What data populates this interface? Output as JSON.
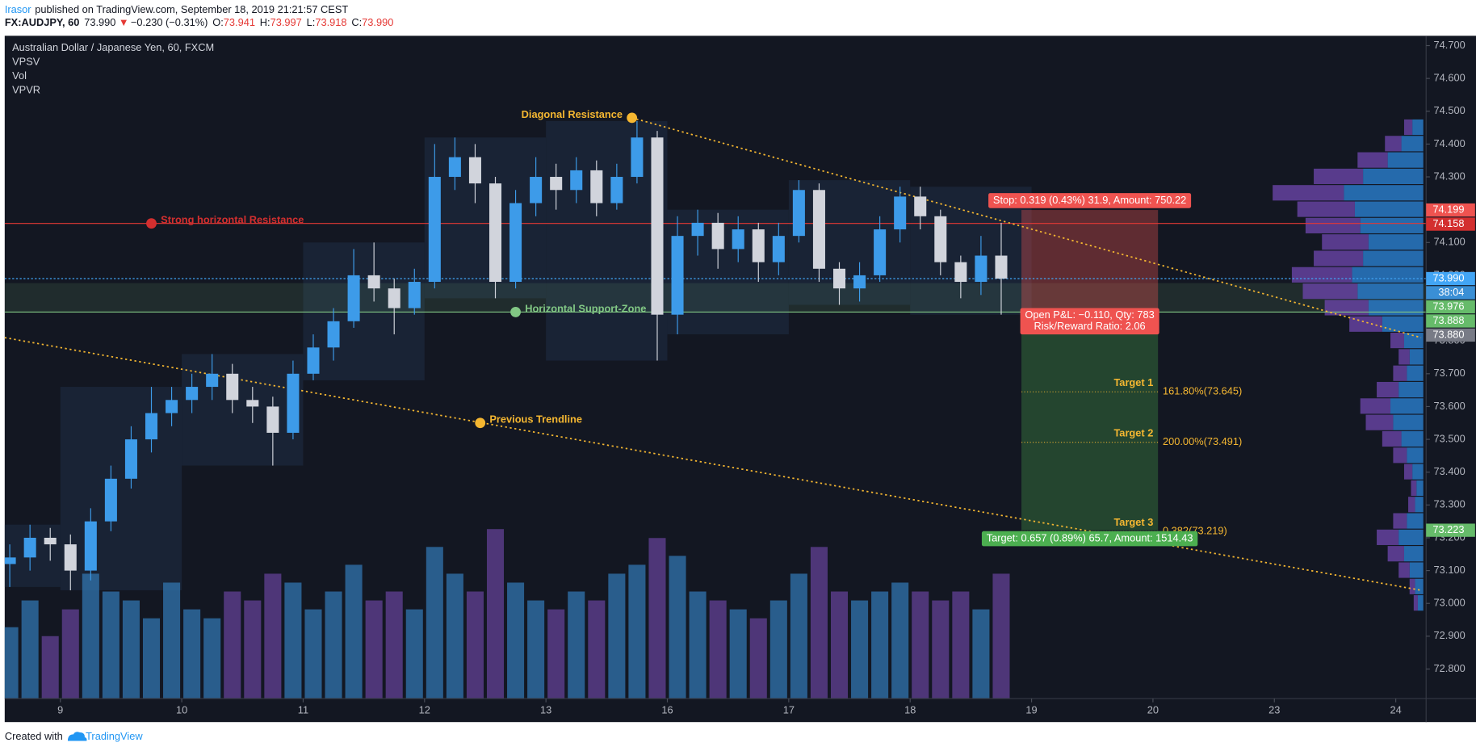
{
  "header": {
    "author": "Irasor",
    "published": "published on TradingView.com, September 18, 2019 21:21:57 CEST",
    "symbol": "FX:AUDJPY, 60",
    "last": "73.990",
    "arrow": "▼",
    "change": "−0.230 (−0.31%)",
    "ohlc": [
      {
        "key": "O:",
        "value": "73.941"
      },
      {
        "key": "H:",
        "value": "73.997"
      },
      {
        "key": "L:",
        "value": "73.918"
      },
      {
        "key": "C:",
        "value": "73.990"
      }
    ]
  },
  "footer": {
    "created": "Created with",
    "brand": "TradingView"
  },
  "chart_data": {
    "type": "candlestick",
    "title": "Australian Dollar / Japanese Yen, 60, FXCM",
    "indicators": [
      "VPSV",
      "Vol",
      "VPVR"
    ],
    "x": [
      0,
      4,
      8,
      12,
      16,
      20,
      24,
      28,
      32,
      36,
      40,
      44,
      48,
      52,
      56,
      60,
      64,
      68,
      72,
      76,
      80,
      84,
      88,
      92,
      96,
      100,
      104,
      108,
      112,
      116,
      120,
      124,
      128,
      132,
      136,
      140,
      144,
      148,
      152,
      156,
      160,
      164,
      168,
      172,
      176,
      180,
      184,
      188,
      192,
      196
    ],
    "open": [
      73.12,
      73.14,
      73.2,
      73.18,
      73.1,
      73.25,
      73.38,
      73.5,
      73.58,
      73.62,
      73.66,
      73.7,
      73.62,
      73.6,
      73.52,
      73.7,
      73.78,
      73.86,
      74.0,
      73.96,
      73.9,
      73.98,
      74.3,
      74.36,
      74.28,
      73.98,
      74.22,
      74.3,
      74.26,
      74.32,
      74.22,
      74.3,
      74.42,
      73.88,
      74.12,
      74.16,
      74.08,
      74.14,
      74.04,
      74.12,
      74.26,
      74.02,
      73.96,
      74.0,
      74.14,
      74.24,
      74.18,
      74.04,
      73.98,
      74.06
    ],
    "high": [
      73.18,
      73.24,
      73.23,
      73.21,
      73.29,
      73.42,
      73.54,
      73.66,
      73.66,
      73.7,
      73.76,
      73.73,
      73.66,
      73.63,
      73.74,
      73.82,
      73.9,
      74.08,
      74.1,
      73.99,
      74.02,
      74.4,
      74.42,
      74.4,
      74.3,
      74.26,
      74.36,
      74.34,
      74.36,
      74.35,
      74.34,
      74.47,
      74.44,
      74.18,
      74.2,
      74.19,
      74.18,
      74.16,
      74.16,
      74.29,
      74.28,
      74.04,
      74.04,
      74.18,
      74.27,
      74.27,
      74.2,
      74.06,
      74.12,
      74.16
    ],
    "low": [
      73.05,
      73.1,
      73.13,
      73.04,
      73.07,
      73.22,
      73.35,
      73.46,
      73.54,
      73.58,
      73.62,
      73.58,
      73.55,
      73.42,
      73.5,
      73.68,
      73.74,
      73.84,
      73.92,
      73.82,
      73.88,
      73.96,
      74.26,
      74.22,
      73.93,
      73.96,
      74.18,
      74.2,
      74.22,
      74.18,
      74.2,
      74.28,
      73.74,
      73.82,
      74.06,
      74.02,
      74.04,
      73.98,
      74.0,
      74.1,
      73.98,
      73.91,
      73.92,
      73.98,
      74.1,
      74.14,
      74.0,
      73.93,
      73.94,
      73.88
    ],
    "close": [
      73.14,
      73.2,
      73.18,
      73.1,
      73.25,
      73.38,
      73.5,
      73.58,
      73.62,
      73.66,
      73.7,
      73.62,
      73.6,
      73.52,
      73.7,
      73.78,
      73.86,
      74.0,
      73.96,
      73.9,
      73.98,
      74.3,
      74.36,
      74.28,
      73.98,
      74.22,
      74.3,
      74.26,
      74.32,
      74.22,
      74.3,
      74.42,
      73.88,
      74.12,
      74.16,
      74.08,
      74.14,
      74.04,
      74.12,
      74.26,
      74.02,
      73.96,
      74.0,
      74.14,
      74.24,
      74.18,
      74.04,
      73.98,
      74.06,
      73.99
    ],
    "volume": [
      40,
      55,
      35,
      50,
      70,
      60,
      55,
      45,
      65,
      50,
      45,
      60,
      55,
      70,
      65,
      50,
      60,
      75,
      55,
      60,
      50,
      85,
      70,
      60,
      95,
      65,
      55,
      50,
      60,
      55,
      70,
      75,
      90,
      80,
      60,
      55,
      50,
      45,
      55,
      70,
      85,
      60,
      55,
      60,
      65,
      60,
      55,
      60,
      50,
      70
    ],
    "up_color": "#3d9be9",
    "down_color": "#d1d4dc",
    "volume_up_color": "#2f6fa8",
    "volume_down_color": "#5e3f8f",
    "session_color": "#1b2638",
    "vpvr": {
      "prices": [
        73.0,
        73.05,
        73.1,
        73.15,
        73.2,
        73.25,
        73.3,
        73.35,
        73.4,
        73.45,
        73.5,
        73.55,
        73.6,
        73.65,
        73.7,
        73.75,
        73.8,
        73.85,
        73.9,
        73.95,
        74.0,
        74.05,
        74.1,
        74.15,
        74.2,
        74.25,
        74.3,
        74.35,
        74.4,
        74.45
      ],
      "up": [
        4,
        6,
        10,
        14,
        18,
        12,
        6,
        5,
        8,
        12,
        16,
        22,
        24,
        18,
        12,
        10,
        14,
        30,
        40,
        48,
        52,
        44,
        40,
        46,
        50,
        58,
        44,
        26,
        16,
        8
      ],
      "down": [
        3,
        4,
        8,
        12,
        16,
        10,
        5,
        4,
        6,
        10,
        14,
        20,
        22,
        16,
        10,
        8,
        10,
        24,
        32,
        40,
        44,
        36,
        34,
        40,
        42,
        52,
        36,
        22,
        12,
        6
      ],
      "up_color": "#2a7fd0",
      "down_color": "#6a45a8"
    },
    "xlim": [
      -1,
      280
    ],
    "xticks": [
      {
        "value": 10,
        "label": "9"
      },
      {
        "value": 34,
        "label": "10"
      },
      {
        "value": 58,
        "label": "11"
      },
      {
        "value": 82,
        "label": "12"
      },
      {
        "value": 106,
        "label": "13"
      },
      {
        "value": 130,
        "label": "16"
      },
      {
        "value": 154,
        "label": "17"
      },
      {
        "value": 178,
        "label": "18"
      },
      {
        "value": 202,
        "label": "19"
      },
      {
        "value": 226,
        "label": "20"
      },
      {
        "value": 250,
        "label": "23"
      },
      {
        "value": 274,
        "label": "24"
      }
    ],
    "ylim": [
      72.71,
      74.73
    ],
    "yticks": [
      {
        "value": 72.8,
        "label": "72.800"
      },
      {
        "value": 72.9,
        "label": "72.900"
      },
      {
        "value": 73.0,
        "label": "73.000"
      },
      {
        "value": 73.1,
        "label": "73.100"
      },
      {
        "value": 73.2,
        "label": "73.200"
      },
      {
        "value": 73.3,
        "label": "73.300"
      },
      {
        "value": 73.4,
        "label": "73.400"
      },
      {
        "value": 73.5,
        "label": "73.500"
      },
      {
        "value": 73.6,
        "label": "73.600"
      },
      {
        "value": 73.7,
        "label": "73.700"
      },
      {
        "value": 73.8,
        "label": "73.800"
      },
      {
        "value": 73.9,
        "label": "73.900"
      },
      {
        "value": 74.0,
        "label": "74.000"
      },
      {
        "value": 74.1,
        "label": "74.100"
      },
      {
        "value": 74.2,
        "label": "74.200"
      },
      {
        "value": 74.3,
        "label": "74.300"
      },
      {
        "value": 74.4,
        "label": "74.400"
      },
      {
        "value": 74.5,
        "label": "74.500"
      },
      {
        "value": 74.6,
        "label": "74.600"
      },
      {
        "value": 74.7,
        "label": "74.700"
      }
    ],
    "grid": false,
    "band": [
      73.888,
      73.976
    ],
    "band_color": "#81c784",
    "hlines": [
      {
        "value": 74.158,
        "color": "#e53935"
      },
      {
        "value": 73.888,
        "color": "#81c784"
      },
      {
        "value": 73.99,
        "color": "#42a5f5",
        "dash": true
      }
    ],
    "lines": [
      {
        "x": [
          123,
          279
        ],
        "y": [
          74.48,
          73.81
        ],
        "color": "#f5b731"
      },
      {
        "x": [
          -1,
          279
        ],
        "y": [
          73.81,
          73.04
        ],
        "color": "#f5b731"
      }
    ],
    "annotations": [
      {
        "text": "Strong horizontal Resistance",
        "x": 28,
        "y": 74.158,
        "color": "#d32f2f"
      },
      {
        "text": "Horizontal Support-Zone",
        "x": 100,
        "y": 73.888,
        "color": "#81c784"
      },
      {
        "text": "Diagonal Resistance",
        "x": 123,
        "y": 74.48,
        "color": "#f5b731"
      },
      {
        "text": "Previous Trendline",
        "x": 93,
        "y": 73.55,
        "color": "#f5b731"
      }
    ],
    "position": {
      "x": [
        200,
        227
      ],
      "entry": 73.88,
      "stop": 74.199,
      "target": 73.223,
      "stop_color": "#ef5350",
      "target_color": "#4caf50",
      "stop_label": "Stop: 0.319 (0.43%) 31.9, Amount: 750.22",
      "pnl_label": [
        "Open P&L: −0.110, Qty: 783",
        "Risk/Reward Ratio: 2.06"
      ],
      "target_label": "Target: 0.657 (0.89%) 65.7, Amount: 1514.43"
    },
    "targets": [
      {
        "name": "Target 1",
        "value": 73.645,
        "label": "161.80%(73.645)"
      },
      {
        "name": "Target 2",
        "value": 73.491,
        "label": "200.00%(73.491)"
      },
      {
        "name": "Target 3",
        "value": 73.219,
        "label": "0.382(73.219)"
      }
    ],
    "target_color": "#f5b731",
    "price_tags": [
      {
        "value": 74.199,
        "label": "74.199",
        "color": "#ef5350"
      },
      {
        "value": 74.158,
        "label": "74.158",
        "color": "#d32f2f"
      },
      {
        "value": 73.99,
        "label": "73.990",
        "color": "#42a5f5",
        "countdown": "38:04"
      },
      {
        "value": 73.976,
        "label": "73.976",
        "color": "#66bb6a"
      },
      {
        "value": 73.888,
        "label": "73.888",
        "color": "#66bb6a"
      },
      {
        "value": 73.88,
        "label": "73.880",
        "color": "#787b86"
      },
      {
        "value": 73.223,
        "label": "73.223",
        "color": "#66bb6a"
      }
    ]
  }
}
